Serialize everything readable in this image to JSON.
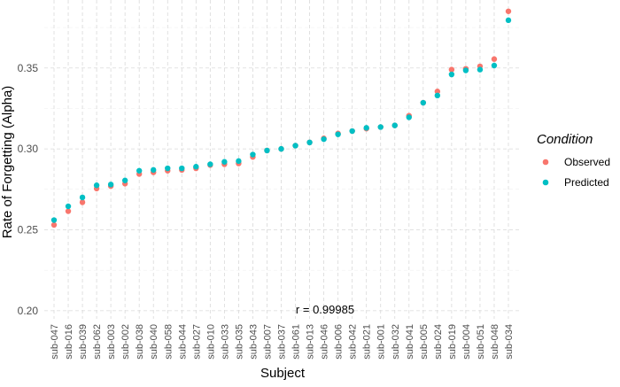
{
  "chart_data": {
    "type": "scatter",
    "title": "",
    "xlabel": "Subject",
    "ylabel": "Rate of Forgetting (Alpha)",
    "ylim": [
      0.195,
      0.392
    ],
    "yticks": [
      0.2,
      0.25,
      0.3,
      0.35
    ],
    "ytick_labels": [
      "0.20",
      "0.25",
      "0.30",
      "0.35"
    ],
    "grid": true,
    "legend_position": "right",
    "legend_title": "Condition",
    "annotation": "r = 0.99985",
    "categories": [
      "sub-047",
      "sub-016",
      "sub-039",
      "sub-062",
      "sub-003",
      "sub-002",
      "sub-038",
      "sub-040",
      "sub-058",
      "sub-044",
      "sub-027",
      "sub-010",
      "sub-033",
      "sub-035",
      "sub-043",
      "sub-007",
      "sub-037",
      "sub-061",
      "sub-013",
      "sub-046",
      "sub-006",
      "sub-042",
      "sub-021",
      "sub-001",
      "sub-032",
      "sub-041",
      "sub-005",
      "sub-024",
      "sub-019",
      "sub-004",
      "sub-051",
      "sub-048",
      "sub-034"
    ],
    "series": [
      {
        "name": "Observed",
        "color": "#F8766D",
        "values": [
          0.253,
          0.2615,
          0.267,
          0.2755,
          0.277,
          0.2785,
          0.2845,
          0.2855,
          0.2865,
          0.287,
          0.288,
          0.29,
          0.2905,
          0.291,
          0.295,
          0.299,
          0.3,
          0.302,
          0.304,
          0.3065,
          0.3095,
          0.311,
          0.3125,
          0.3135,
          0.3145,
          0.3205,
          0.3285,
          0.3355,
          0.349,
          0.3495,
          0.351,
          0.3555,
          0.385
        ]
      },
      {
        "name": "Predicted",
        "color": "#00BFC4",
        "values": [
          0.256,
          0.2645,
          0.27,
          0.2775,
          0.278,
          0.2805,
          0.2865,
          0.287,
          0.288,
          0.288,
          0.289,
          0.2905,
          0.292,
          0.2925,
          0.2965,
          0.299,
          0.3,
          0.302,
          0.304,
          0.306,
          0.309,
          0.311,
          0.313,
          0.3135,
          0.3145,
          0.3195,
          0.3285,
          0.333,
          0.346,
          0.3485,
          0.349,
          0.3515,
          0.3795
        ]
      }
    ]
  }
}
